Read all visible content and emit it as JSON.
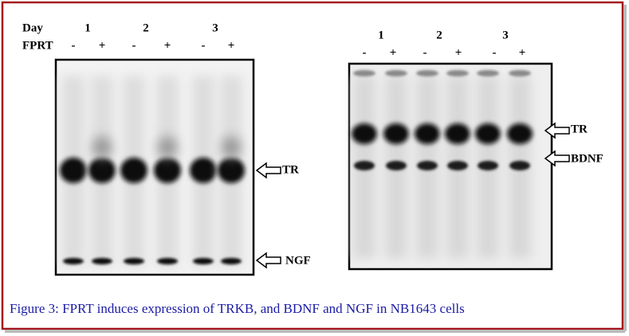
{
  "left_panel": {
    "day_label": "Day",
    "treatment_label": "FPRT",
    "days": [
      "1",
      "2",
      "3"
    ],
    "lanes": [
      "-",
      "+",
      "-",
      "+",
      "-",
      "+"
    ],
    "bands": [
      "TR",
      "NGF"
    ]
  },
  "right_panel": {
    "days": [
      "1",
      "2",
      "3"
    ],
    "lanes": [
      "-",
      "+",
      "-",
      "+",
      "-",
      "+"
    ],
    "bands": [
      "TR",
      "BDNF"
    ]
  },
  "caption": "Figure 3: FPRT induces expression of TRKB, and BDNF and NGF in NB1643 cells"
}
